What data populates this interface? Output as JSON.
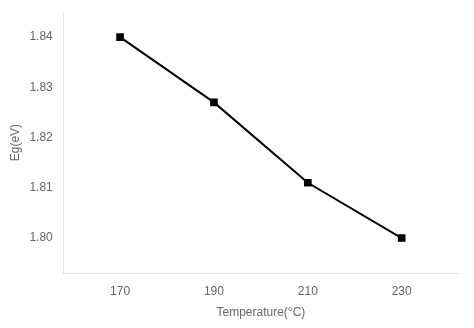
{
  "chart_data": {
    "type": "line",
    "x": [
      170,
      190,
      210,
      230
    ],
    "values": [
      1.84,
      1.827,
      1.811,
      1.8
    ],
    "xlabel": "Temperature(°C)",
    "ylabel": "Eg(eV)",
    "xlim": [
      158,
      242
    ],
    "ylim": [
      1.793,
      1.845
    ],
    "xticks": [
      170,
      190,
      210,
      230
    ],
    "yticks": [
      {
        "value": 1.8,
        "label": "1.80"
      },
      {
        "value": 1.81,
        "label": "1.81"
      },
      {
        "value": 1.82,
        "label": "1.82"
      },
      {
        "value": 1.83,
        "label": "1.83"
      },
      {
        "value": 1.84,
        "label": "1.84"
      }
    ],
    "color": "#000000",
    "marker": "square",
    "grid": false
  }
}
